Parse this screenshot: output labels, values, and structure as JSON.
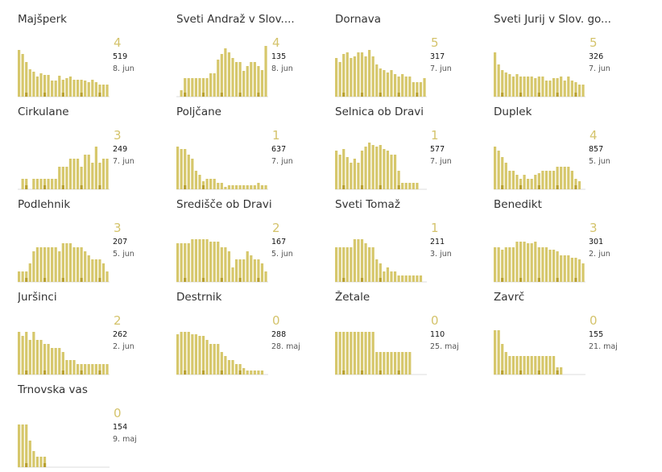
{
  "colors": {
    "bar": "#d6c76b",
    "bar_dark": "#b8a030",
    "baseline": "#dddddd",
    "big_number": "#d4c36b"
  },
  "chart_data": [
    {
      "type": "bar",
      "title": "Majšperk",
      "current": "4",
      "total": "519",
      "date": "8. jun",
      "values": [
        58,
        53,
        43,
        34,
        31,
        25,
        29,
        27,
        27,
        20,
        20,
        26,
        21,
        23,
        25,
        21,
        21,
        21,
        20,
        18,
        21,
        18,
        15,
        15,
        15
      ]
    },
    {
      "type": "bar",
      "title": "Sveti Andraž v Slov....",
      "current": "4",
      "total": "135",
      "date": "8. jun",
      "values": [
        0,
        8,
        23,
        23,
        23,
        23,
        23,
        23,
        23,
        29,
        29,
        46,
        53,
        60,
        55,
        48,
        43,
        43,
        32,
        38,
        43,
        43,
        38,
        33,
        63
      ]
    },
    {
      "type": "bar",
      "title": "Dornava",
      "current": "5",
      "total": "317",
      "date": "7. jun",
      "values": [
        48,
        43,
        53,
        55,
        48,
        50,
        55,
        55,
        50,
        58,
        50,
        40,
        35,
        33,
        30,
        33,
        28,
        25,
        28,
        25,
        25,
        18,
        18,
        18,
        23
      ]
    },
    {
      "type": "bar",
      "title": "Sveti Jurij v Slov. go...",
      "current": "5",
      "total": "326",
      "date": "7. jun",
      "values": [
        55,
        40,
        33,
        30,
        28,
        25,
        28,
        25,
        25,
        25,
        25,
        23,
        25,
        25,
        20,
        20,
        23,
        23,
        25,
        20,
        25,
        20,
        18,
        15,
        15
      ]
    },
    {
      "type": "bar",
      "title": "Cirkulane",
      "current": "3",
      "total": "249",
      "date": "7. jun",
      "values": [
        0,
        13,
        13,
        0,
        13,
        13,
        13,
        13,
        13,
        13,
        13,
        28,
        28,
        28,
        38,
        38,
        38,
        28,
        43,
        43,
        33,
        53,
        33,
        38,
        38
      ]
    },
    {
      "type": "bar",
      "title": "Poljčane",
      "current": "1",
      "total": "637",
      "date": "7. jun",
      "values": [
        53,
        50,
        50,
        43,
        38,
        23,
        18,
        10,
        13,
        13,
        13,
        8,
        8,
        3,
        5,
        5,
        5,
        5,
        5,
        5,
        5,
        5,
        8,
        5,
        5
      ]
    },
    {
      "type": "bar",
      "title": "Selnica ob Dravi",
      "current": "1",
      "total": "577",
      "date": "7. jun",
      "values": [
        48,
        43,
        50,
        40,
        33,
        38,
        33,
        48,
        53,
        58,
        55,
        53,
        55,
        50,
        48,
        43,
        43,
        23,
        8,
        8,
        8,
        8,
        8,
        0,
        0
      ]
    },
    {
      "type": "bar",
      "title": "Duplek",
      "current": "4",
      "total": "857",
      "date": "5. jun",
      "values": [
        53,
        48,
        40,
        33,
        23,
        23,
        18,
        13,
        18,
        13,
        13,
        18,
        20,
        23,
        23,
        23,
        23,
        28,
        28,
        28,
        28,
        23,
        13,
        10,
        0
      ]
    },
    {
      "type": "bar",
      "title": "Podlehnik",
      "current": "3",
      "total": "207",
      "date": "5. jun",
      "values": [
        13,
        13,
        13,
        23,
        38,
        43,
        43,
        43,
        43,
        43,
        43,
        38,
        48,
        48,
        48,
        43,
        43,
        43,
        38,
        33,
        28,
        28,
        28,
        23,
        13
      ]
    },
    {
      "type": "bar",
      "title": "Središče ob Dravi",
      "current": "2",
      "total": "167",
      "date": "5. jun",
      "values": [
        48,
        48,
        48,
        48,
        53,
        53,
        53,
        53,
        53,
        50,
        50,
        50,
        43,
        43,
        38,
        18,
        28,
        28,
        28,
        38,
        33,
        28,
        28,
        23,
        13
      ]
    },
    {
      "type": "bar",
      "title": "Sveti Tomaž",
      "current": "1",
      "total": "211",
      "date": "3. jun",
      "values": [
        43,
        43,
        43,
        43,
        43,
        53,
        53,
        53,
        48,
        43,
        43,
        28,
        23,
        13,
        18,
        13,
        13,
        8,
        8,
        8,
        8,
        8,
        8,
        8,
        0
      ]
    },
    {
      "type": "bar",
      "title": "Benedikt",
      "current": "3",
      "total": "301",
      "date": "2. jun",
      "values": [
        43,
        43,
        40,
        43,
        43,
        43,
        50,
        50,
        50,
        48,
        48,
        50,
        43,
        43,
        43,
        40,
        40,
        38,
        33,
        33,
        33,
        30,
        30,
        28,
        23
      ]
    },
    {
      "type": "bar",
      "title": "Juršinci",
      "current": "2",
      "total": "262",
      "date": "2. jun",
      "values": [
        53,
        48,
        53,
        43,
        53,
        43,
        43,
        38,
        38,
        33,
        33,
        33,
        28,
        18,
        18,
        18,
        13,
        13,
        13,
        13,
        13,
        13,
        13,
        13,
        13
      ]
    },
    {
      "type": "bar",
      "title": "Destrnik",
      "current": "0",
      "total": "288",
      "date": "28. maj",
      "values": [
        50,
        53,
        53,
        53,
        50,
        50,
        48,
        48,
        43,
        38,
        38,
        38,
        28,
        23,
        18,
        18,
        13,
        13,
        8,
        5,
        5,
        5,
        5,
        5,
        0
      ]
    },
    {
      "type": "bar",
      "title": "Žetale",
      "current": "0",
      "total": "110",
      "date": "25. maj",
      "values": [
        53,
        53,
        53,
        53,
        53,
        53,
        53,
        53,
        53,
        53,
        53,
        28,
        28,
        28,
        28,
        28,
        28,
        28,
        28,
        28,
        28,
        0,
        0,
        0,
        0
      ]
    },
    {
      "type": "bar",
      "title": "Zavrč",
      "current": "0",
      "total": "155",
      "date": "21. maj",
      "values": [
        55,
        55,
        38,
        28,
        23,
        23,
        23,
        23,
        23,
        23,
        23,
        23,
        23,
        23,
        23,
        23,
        23,
        9,
        9,
        0,
        0,
        0,
        0,
        0,
        0
      ]
    },
    {
      "type": "bar",
      "title": "Trnovska vas",
      "current": "0",
      "total": "154",
      "date": "9. maj",
      "values": [
        53,
        53,
        53,
        33,
        20,
        13,
        13,
        13,
        0,
        0,
        0,
        0,
        0,
        0,
        0,
        0,
        0,
        0,
        0,
        0,
        0,
        0,
        0,
        0,
        0
      ]
    }
  ]
}
